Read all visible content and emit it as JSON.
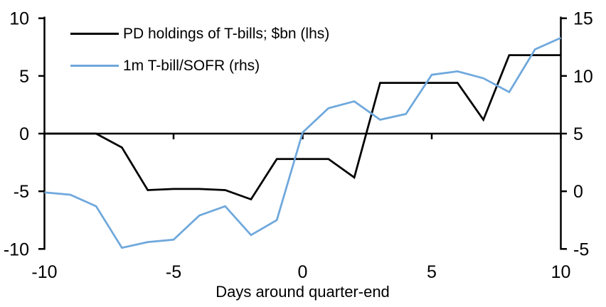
{
  "chart": {
    "background": "#FFFFFF",
    "text_color": "#000000",
    "colors": {
      "pd_holdings": "#000000",
      "tbill_sofr": "#6FA8DC"
    }
  },
  "chart_data": {
    "type": "line",
    "title": "",
    "xlabel": "Days around quarter-end",
    "grid": false,
    "legend_position": "top-left",
    "x": [
      -10,
      -9,
      -8,
      -7,
      -6,
      -5,
      -4,
      -3,
      -2,
      -1,
      0,
      1,
      2,
      3,
      4,
      5,
      6,
      7,
      8,
      9,
      10
    ],
    "x_ticks": [
      -10,
      -5,
      0,
      5,
      10
    ],
    "left_axis": {
      "range": [
        -10,
        10
      ],
      "ticks": [
        10,
        5,
        0,
        -5,
        -10
      ]
    },
    "right_axis": {
      "range": [
        -5,
        15
      ],
      "ticks": [
        15,
        10,
        5,
        0,
        -5
      ]
    },
    "series": [
      {
        "name": "PD holdings of T-bills; $bn (lhs)",
        "axis": "left",
        "color": "#000000",
        "values": [
          0.0,
          0.0,
          0.0,
          -1.2,
          -4.9,
          -4.8,
          -4.8,
          -4.9,
          -5.7,
          -2.2,
          -2.2,
          -2.2,
          -3.8,
          4.4,
          4.4,
          4.4,
          4.4,
          1.2,
          6.8,
          6.8,
          6.8
        ]
      },
      {
        "name": "1m T-bill/SOFR (rhs)",
        "axis": "right",
        "color": "#6FA8DC",
        "values": [
          -0.1,
          -0.3,
          -1.3,
          -4.9,
          -4.4,
          -4.2,
          -2.1,
          -1.3,
          -3.8,
          -2.5,
          5.1,
          7.2,
          7.8,
          6.2,
          6.7,
          10.1,
          10.4,
          9.8,
          8.6,
          12.3,
          13.3
        ]
      }
    ]
  }
}
